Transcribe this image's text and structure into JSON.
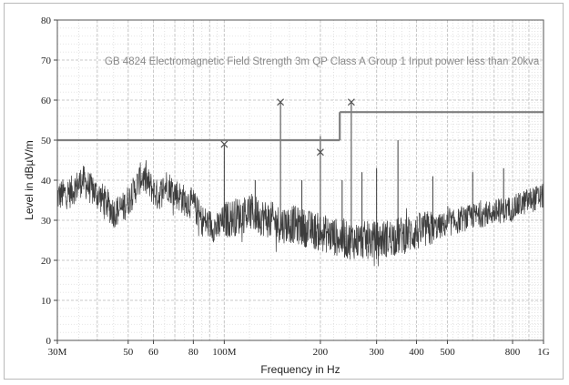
{
  "chart_data": {
    "type": "line",
    "title": "",
    "xlabel": "Frequency in Hz",
    "ylabel": "Level in dBµV/m",
    "x_scale": "log",
    "xlim": [
      30000000,
      1000000000
    ],
    "ylim": [
      0,
      80
    ],
    "grid": true,
    "x_tick_labels": [
      {
        "value": 30000000,
        "label": "30M"
      },
      {
        "value": 50000000,
        "label": "50"
      },
      {
        "value": 60000000,
        "label": "60"
      },
      {
        "value": 80000000,
        "label": "80"
      },
      {
        "value": 100000000,
        "label": "100M"
      },
      {
        "value": 200000000,
        "label": "200"
      },
      {
        "value": 300000000,
        "label": "300"
      },
      {
        "value": 400000000,
        "label": "400"
      },
      {
        "value": 500000000,
        "label": "500"
      },
      {
        "value": 800000000,
        "label": "800"
      },
      {
        "value": 1000000000,
        "label": "1G"
      }
    ],
    "y_tick_labels": [
      "0",
      "10",
      "20",
      "30",
      "40",
      "50",
      "60",
      "70",
      "80"
    ],
    "limit_line": {
      "label": "GB 4824 Electromagnetic Field Strength 3m QP Class A Group 1 Input power less than 20kva",
      "segments": [
        {
          "x_start": 30000000,
          "x_end": 230000000,
          "value": 50
        },
        {
          "x_start": 230000000,
          "x_end": 1000000000,
          "value": 57
        }
      ]
    },
    "qp_markers": [
      {
        "x": 100000000,
        "y": 49
      },
      {
        "x": 150000000,
        "y": 59.5
      },
      {
        "x": 200000000,
        "y": 47
      },
      {
        "x": 250000000,
        "y": 59.5
      }
    ],
    "peaks": [
      {
        "x": 100000000,
        "y": 49
      },
      {
        "x": 150000000,
        "y": 59.5
      },
      {
        "x": 200000000,
        "y": 51
      },
      {
        "x": 250000000,
        "y": 59.5
      },
      {
        "x": 234000000,
        "y": 40
      },
      {
        "x": 300000000,
        "y": 43
      },
      {
        "x": 350000000,
        "y": 50
      },
      {
        "x": 270000000,
        "y": 42
      },
      {
        "x": 125000000,
        "y": 40
      },
      {
        "x": 175000000,
        "y": 40
      },
      {
        "x": 450000000,
        "y": 41
      },
      {
        "x": 600000000,
        "y": 42
      },
      {
        "x": 750000000,
        "y": 43
      }
    ],
    "series": [
      {
        "values": [
          [
            30000000,
            36
          ],
          [
            33000000,
            37
          ],
          [
            36000000,
            40
          ],
          [
            38000000,
            38
          ],
          [
            42000000,
            35
          ],
          [
            45000000,
            32
          ],
          [
            48000000,
            33
          ],
          [
            52000000,
            37
          ],
          [
            55000000,
            41
          ],
          [
            58000000,
            39
          ],
          [
            62000000,
            36
          ],
          [
            66000000,
            39
          ],
          [
            70000000,
            37
          ],
          [
            75000000,
            35
          ],
          [
            80000000,
            34
          ],
          [
            85000000,
            30
          ],
          [
            90000000,
            29
          ],
          [
            95000000,
            28
          ],
          [
            100000000,
            30
          ],
          [
            110000000,
            31
          ],
          [
            120000000,
            32
          ],
          [
            130000000,
            31
          ],
          [
            140000000,
            30
          ],
          [
            150000000,
            29
          ],
          [
            165000000,
            29
          ],
          [
            180000000,
            28
          ],
          [
            200000000,
            27
          ],
          [
            220000000,
            26
          ],
          [
            240000000,
            25
          ],
          [
            270000000,
            25
          ],
          [
            300000000,
            25
          ],
          [
            350000000,
            26
          ],
          [
            400000000,
            27
          ],
          [
            450000000,
            28
          ],
          [
            500000000,
            29
          ],
          [
            550000000,
            30
          ],
          [
            600000000,
            31
          ],
          [
            700000000,
            32
          ],
          [
            800000000,
            33
          ],
          [
            900000000,
            35
          ],
          [
            1000000000,
            36
          ]
        ]
      }
    ],
    "colors": {
      "grid": "#c8c8c8",
      "trace": "#3c3c3c",
      "limit": "#7f7f7f",
      "marker": "#555555"
    }
  }
}
